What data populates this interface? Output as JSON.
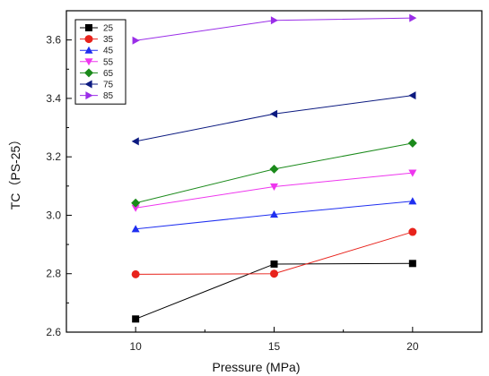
{
  "chart_data": {
    "type": "line",
    "xlabel": "Pressure (MPa)",
    "ylabel": "TC（PS-25）",
    "x": [
      10,
      15,
      20
    ],
    "xlim": [
      7.5,
      22.5
    ],
    "ylim": [
      2.6,
      3.7
    ],
    "xticks": [
      10,
      15,
      20
    ],
    "yticks": [
      2.6,
      2.8,
      3.0,
      3.2,
      3.4,
      3.6
    ],
    "ytick_labels": [
      "2.6",
      "2.8",
      "3.0",
      "3.2",
      "3.4",
      "3.6"
    ],
    "grid": false,
    "legend_position": "top-left",
    "series": [
      {
        "name": "25",
        "values": [
          2.645,
          2.833,
          2.835
        ],
        "color": "#000000",
        "marker": "square"
      },
      {
        "name": "35",
        "values": [
          2.798,
          2.8,
          2.943
        ],
        "color": "#e8231c",
        "marker": "circle"
      },
      {
        "name": "45",
        "values": [
          2.953,
          3.003,
          3.048
        ],
        "color": "#1f2ff0",
        "marker": "triangle-up"
      },
      {
        "name": "55",
        "values": [
          3.025,
          3.098,
          3.145
        ],
        "color": "#ee36ee",
        "marker": "triangle-down"
      },
      {
        "name": "65",
        "values": [
          3.042,
          3.158,
          3.247
        ],
        "color": "#1b8a1b",
        "marker": "diamond"
      },
      {
        "name": "75",
        "values": [
          3.253,
          3.347,
          3.41
        ],
        "color": "#0c1a80",
        "marker": "triangle-left"
      },
      {
        "name": "85",
        "values": [
          3.598,
          3.667,
          3.675
        ],
        "color": "#9a2ee8",
        "marker": "triangle-right"
      }
    ]
  }
}
